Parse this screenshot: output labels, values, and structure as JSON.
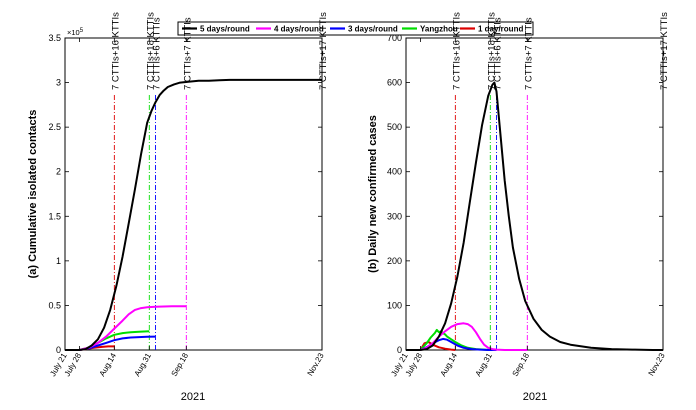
{
  "legend": {
    "entries": [
      {
        "label": "5 days/round",
        "color": "#000000"
      },
      {
        "label": "4 days/round",
        "color": "#ff00ff"
      },
      {
        "label": "3 days/round",
        "color": "#0000ff"
      },
      {
        "label": "Yangzhou",
        "color": "#00dd00"
      },
      {
        "label": "1 day/round",
        "color": "#dd0000"
      }
    ]
  },
  "chart_data": [
    {
      "type": "line",
      "ylabel": "(a) Cumulative isolated contacts",
      "xlabel": "2021",
      "y_multiplier": "×10⁵",
      "exponent_base": "×10",
      "exponent_power": "5",
      "ylim": [
        0,
        3.5
      ],
      "xlim": [
        0,
        125
      ],
      "yticks": [
        0,
        0.5,
        1,
        1.5,
        2,
        2.5,
        3,
        3.5
      ],
      "ytick_labels": [
        "0",
        "0.5",
        "1",
        "1.5",
        "2",
        "2.5",
        "3",
        "3.5"
      ],
      "xticks": [
        {
          "label": "July 21",
          "day": 0
        },
        {
          "label": "July 28",
          "day": 7
        },
        {
          "label": "Aug.14",
          "day": 24
        },
        {
          "label": "Aug.31",
          "day": 41
        },
        {
          "label": "Sep.18",
          "day": 59
        },
        {
          "label": "Nov.23",
          "day": 125
        }
      ],
      "series": [
        {
          "name": "5 days/round",
          "color": "#000000",
          "x": [
            0,
            7,
            10,
            13,
            16,
            19,
            22,
            25,
            28,
            31,
            34,
            37,
            40,
            42,
            44,
            46,
            48,
            50,
            53,
            56,
            60,
            65,
            70,
            75,
            80,
            90,
            100,
            110,
            120,
            125
          ],
          "y": [
            0,
            0,
            0.01,
            0.05,
            0.12,
            0.25,
            0.45,
            0.72,
            1.05,
            1.42,
            1.8,
            2.2,
            2.55,
            2.68,
            2.78,
            2.86,
            2.91,
            2.95,
            2.98,
            3.0,
            3.01,
            3.02,
            3.02,
            3.025,
            3.03,
            3.03,
            3.03,
            3.03,
            3.03,
            3.03
          ]
        },
        {
          "name": "4 days/round",
          "color": "#ff00ff",
          "x": [
            0,
            7,
            12,
            16,
            20,
            24,
            28,
            31,
            34,
            37,
            40,
            44,
            48,
            52,
            56,
            59
          ],
          "y": [
            0,
            0,
            0.03,
            0.08,
            0.15,
            0.24,
            0.33,
            0.4,
            0.45,
            0.47,
            0.48,
            0.485,
            0.488,
            0.49,
            0.49,
            0.49
          ]
        },
        {
          "name": "3 days/round",
          "color": "#0000ff",
          "x": [
            0,
            7,
            12,
            16,
            20,
            24,
            28,
            32,
            36,
            40,
            44
          ],
          "y": [
            0,
            0,
            0.02,
            0.05,
            0.08,
            0.11,
            0.13,
            0.14,
            0.145,
            0.148,
            0.15
          ]
        },
        {
          "name": "Yangzhou",
          "color": "#00dd00",
          "x": [
            0,
            7,
            12,
            16,
            20,
            24,
            28,
            32,
            36,
            41
          ],
          "y": [
            0,
            0,
            0.03,
            0.08,
            0.13,
            0.17,
            0.19,
            0.2,
            0.205,
            0.21
          ]
        },
        {
          "name": "1 day/round",
          "color": "#dd0000",
          "x": [
            0,
            7,
            10,
            14,
            18,
            21,
            24
          ],
          "y": [
            0,
            0,
            0.01,
            0.025,
            0.035,
            0.04,
            0.04
          ]
        }
      ],
      "vlines": [
        {
          "day": 24,
          "label": "7 CTTIs+16 KTTIs",
          "color": "#dd0000"
        },
        {
          "day": 41,
          "label": "7 CTTIs+18 KTTIs",
          "color": "#00dd00"
        },
        {
          "day": 44,
          "label": "7 CTTIs+6 KTTIs",
          "color": "#0000ff"
        },
        {
          "day": 59,
          "label": "7 CTTIs+7 KTTIs",
          "color": "#ff00ff"
        },
        {
          "day": 125,
          "label": "7 CTTIs+17 KTTIs",
          "color": "#000000"
        }
      ]
    },
    {
      "type": "line",
      "ylabel": "(b) Daily new confirmed cases",
      "xlabel": "2021",
      "ylim": [
        0,
        700
      ],
      "xlim": [
        0,
        125
      ],
      "yticks": [
        0,
        100,
        200,
        300,
        400,
        500,
        600,
        700
      ],
      "ytick_labels": [
        "0",
        "100",
        "200",
        "300",
        "400",
        "500",
        "600",
        "700"
      ],
      "xticks": [
        {
          "label": "July 21",
          "day": 0
        },
        {
          "label": "July 28",
          "day": 7
        },
        {
          "label": "Aug.14",
          "day": 24
        },
        {
          "label": "Aug.31",
          "day": 41
        },
        {
          "label": "Sep.18",
          "day": 59
        },
        {
          "label": "Nov.23",
          "day": 125
        }
      ],
      "series": [
        {
          "name": "5 days/round",
          "color": "#000000",
          "x": [
            0,
            7,
            10,
            13,
            16,
            19,
            22,
            25,
            28,
            31,
            34,
            37,
            40,
            42,
            43,
            44,
            46,
            48,
            50,
            52,
            55,
            58,
            62,
            66,
            70,
            75,
            80,
            90,
            100,
            110,
            120,
            125
          ],
          "y": [
            0,
            0,
            2,
            10,
            30,
            60,
            105,
            165,
            240,
            330,
            420,
            505,
            570,
            595,
            600,
            580,
            480,
            380,
            300,
            230,
            160,
            110,
            70,
            45,
            30,
            18,
            12,
            5,
            2,
            1,
            0,
            0
          ]
        },
        {
          "name": "4 days/round",
          "color": "#ff00ff",
          "x": [
            0,
            7,
            10,
            13,
            16,
            19,
            22,
            25,
            28,
            30,
            32,
            34,
            36,
            38,
            40,
            42,
            44,
            48,
            52,
            56,
            59
          ],
          "y": [
            0,
            0,
            5,
            15,
            30,
            42,
            52,
            58,
            60,
            58,
            52,
            40,
            25,
            12,
            5,
            2,
            1,
            0,
            0,
            0,
            0
          ]
        },
        {
          "name": "3 days/round",
          "color": "#0000ff",
          "x": [
            0,
            7,
            10,
            13,
            16,
            18,
            20,
            22,
            25,
            28,
            32,
            36,
            40,
            44
          ],
          "y": [
            0,
            0,
            6,
            15,
            22,
            25,
            23,
            18,
            10,
            5,
            2,
            1,
            0,
            0
          ]
        },
        {
          "name": "Yangzhou",
          "color": "#00dd00",
          "x": [
            0,
            7,
            10,
            12,
            14,
            15,
            16,
            17,
            18,
            19,
            20,
            22,
            24,
            27,
            30,
            34,
            38,
            41
          ],
          "y": [
            0,
            0,
            15,
            28,
            38,
            45,
            40,
            42,
            38,
            35,
            30,
            24,
            18,
            10,
            5,
            2,
            1,
            0
          ]
        },
        {
          "name": "1 day/round",
          "color": "#dd0000",
          "x": [
            0,
            7,
            9,
            11,
            13,
            16,
            19,
            22,
            24
          ],
          "y": [
            0,
            0,
            15,
            18,
            12,
            6,
            3,
            1,
            0
          ]
        }
      ],
      "vlines": [
        {
          "day": 24,
          "label": "7 CTTIs+16 KTTIs",
          "color": "#dd0000"
        },
        {
          "day": 41,
          "label": "7 CTTIs+18 KTTIs",
          "color": "#00dd00"
        },
        {
          "day": 44,
          "label": "7 CTTIs+6 KTTIs",
          "color": "#0000ff"
        },
        {
          "day": 59,
          "label": "7 CTTIs+7 KTTIs",
          "color": "#ff00ff"
        },
        {
          "day": 125,
          "label": "7 CTTIs+17 KTTIs",
          "color": "#000000"
        }
      ]
    }
  ]
}
